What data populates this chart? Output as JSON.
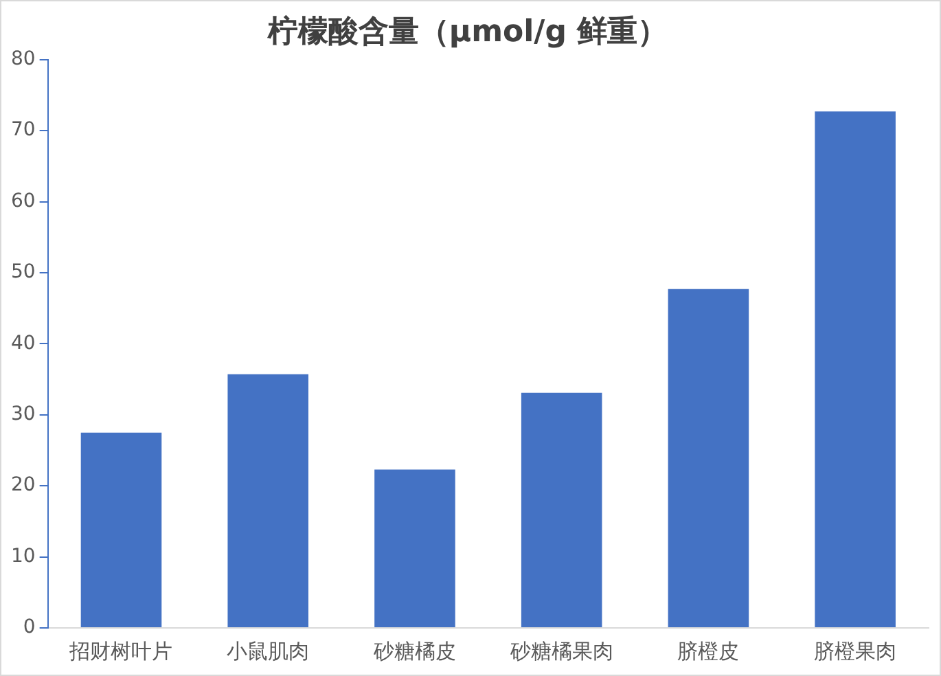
{
  "chart_data": {
    "type": "bar",
    "title": "柠檬酸含量（μmol/g 鲜重）",
    "categories": [
      "招财树叶片",
      "小鼠肌肉",
      "砂糖橘皮",
      "砂糖橘果肉",
      "脐橙皮",
      "脐橙果肉"
    ],
    "values": [
      27.5,
      35.7,
      22.3,
      33.1,
      47.7,
      72.7
    ],
    "color": "#4472c4",
    "ylim": [
      0,
      80
    ],
    "yticks": [
      0,
      10,
      20,
      30,
      40,
      50,
      60,
      70,
      80
    ],
    "grid": false,
    "legend": false
  }
}
